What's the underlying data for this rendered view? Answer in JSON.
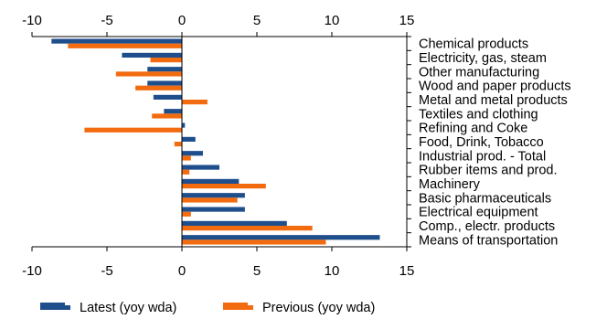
{
  "chart_data": {
    "type": "bar",
    "orientation": "horizontal",
    "categories": [
      "Chemical products",
      "Electricity, gas, steam",
      "Other manufacturing",
      "Wood and paper products",
      "Metal and metal products",
      "Textiles and clothing",
      "Refining and Coke",
      "Food, Drink, Tobacco",
      "Industrial prod. - Total",
      "Rubber items and prod.",
      "Machinery",
      "Basic pharmaceuticals",
      "Electrical equipment",
      "Comp., electr. products",
      "Means of transportation"
    ],
    "series": [
      {
        "name": "Latest (yoy wda)",
        "color": "#1f4e8c",
        "values": [
          -8.7,
          -4.0,
          -2.3,
          -2.3,
          -1.9,
          -1.2,
          0.2,
          0.9,
          1.4,
          2.5,
          3.8,
          4.2,
          4.2,
          7.0,
          13.2
        ]
      },
      {
        "name": "Previous (yoy wda)",
        "color": "#f26b0f",
        "values": [
          -7.6,
          -2.1,
          -4.4,
          -3.1,
          1.7,
          -2.0,
          -6.5,
          -0.5,
          0.6,
          0.5,
          5.6,
          3.7,
          0.6,
          8.7,
          9.6
        ]
      }
    ],
    "xlim": [
      -10,
      15
    ],
    "xticks": [
      -10,
      -5,
      0,
      5,
      10,
      15
    ],
    "xtick_labels": [
      "-10",
      "-5",
      "0",
      "5",
      "10",
      "15"
    ],
    "grid": false,
    "legend_position": "bottom"
  }
}
